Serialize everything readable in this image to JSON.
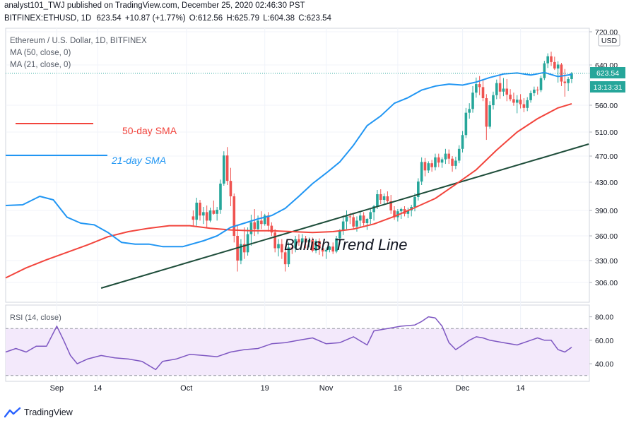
{
  "header": {
    "line1": "analyst101_TWJ published on TradingView.com, December 25, 2020 02:46:30 PST",
    "symbol": "BITFINEX:ETHUSD, 1D",
    "value": "623.54",
    "change": "+10.87 (+1.77%)",
    "o_label": "O:",
    "o": "612.56",
    "h_label": "H:",
    "h": "625.79",
    "l_label": "L:",
    "l": "604.38",
    "c_label": "C:",
    "c": "623.54"
  },
  "legend": {
    "title": "Ethereum / U.S. Dollar, 1D, BITFINEX",
    "ma50": "MA (50, close, 0)",
    "ma21": "MA (21, close, 0)"
  },
  "rsi_label": "RSI (14, close)",
  "footer": {
    "brand": "TradingView"
  },
  "colors": {
    "up": "#26a69a",
    "down": "#ef5350",
    "ma50": "#f2453d",
    "ma21": "#2196f3",
    "trend": "#1e4d3a",
    "rsi": "#7e57c2",
    "rsi_band": "#f3e9fb",
    "price_tag": "#26a69a",
    "timer_tag": "#26a69a"
  },
  "chart_data": [
    {
      "type": "candlestick",
      "title": "Ethereum / U.S. Dollar, 1D, BITFINEX",
      "ylim": [
        280,
        720
      ],
      "y_ticks": [
        "720.00",
        "640.00",
        "560.00",
        "510.00",
        "470.00",
        "430.00",
        "390.00",
        "360.00",
        "330.00",
        "306.00"
      ],
      "y_unit": "USD",
      "x_ticks": [
        "Sep",
        "14",
        "Oct",
        "19",
        "Nov",
        "16",
        "Dec",
        "14"
      ],
      "last_price": "623.54",
      "countdown": "13:13:31",
      "candles": [
        [
          383,
          390,
          371,
          379
        ],
        [
          379,
          408,
          372,
          401
        ],
        [
          401,
          405,
          378,
          384
        ],
        [
          384,
          395,
          374,
          388
        ],
        [
          388,
          397,
          370,
          378
        ],
        [
          378,
          394,
          376,
          390
        ],
        [
          390,
          404,
          385,
          386
        ],
        [
          386,
          395,
          378,
          391
        ],
        [
          391,
          434,
          386,
          428
        ],
        [
          428,
          478,
          425,
          471
        ],
        [
          471,
          485,
          426,
          432
        ],
        [
          432,
          452,
          396,
          410
        ],
        [
          410,
          414,
          352,
          360
        ],
        [
          360,
          372,
          318,
          330
        ],
        [
          330,
          356,
          326,
          350
        ],
        [
          350,
          370,
          332,
          340
        ],
        [
          340,
          370,
          336,
          362
        ],
        [
          362,
          385,
          348,
          376
        ],
        [
          376,
          392,
          360,
          368
        ],
        [
          368,
          384,
          362,
          378
        ],
        [
          378,
          389,
          368,
          374
        ],
        [
          374,
          386,
          372,
          384
        ],
        [
          384,
          388,
          365,
          372
        ],
        [
          372,
          376,
          360,
          364
        ],
        [
          364,
          368,
          340,
          345
        ],
        [
          345,
          356,
          335,
          350
        ],
        [
          350,
          356,
          332,
          340
        ],
        [
          340,
          347,
          318,
          326
        ],
        [
          326,
          352,
          323,
          346
        ],
        [
          346,
          350,
          338,
          345
        ],
        [
          345,
          360,
          340,
          356
        ],
        [
          356,
          362,
          348,
          352
        ],
        [
          352,
          362,
          350,
          357
        ],
        [
          357,
          360,
          345,
          352
        ],
        [
          352,
          358,
          346,
          355
        ],
        [
          355,
          358,
          340,
          342
        ],
        [
          342,
          356,
          339,
          354
        ],
        [
          354,
          357,
          337,
          345
        ],
        [
          345,
          350,
          335,
          341
        ],
        [
          341,
          346,
          332,
          343
        ],
        [
          343,
          348,
          340,
          347
        ],
        [
          347,
          352,
          338,
          341
        ],
        [
          341,
          360,
          339,
          357
        ],
        [
          357,
          368,
          350,
          366
        ],
        [
          366,
          384,
          361,
          377
        ],
        [
          377,
          390,
          368,
          383
        ],
        [
          383,
          387,
          374,
          382
        ],
        [
          382,
          386,
          368,
          371
        ],
        [
          371,
          383,
          365,
          378
        ],
        [
          378,
          388,
          371,
          384
        ],
        [
          384,
          388,
          372,
          375
        ],
        [
          375,
          381,
          367,
          380
        ],
        [
          380,
          392,
          374,
          388
        ],
        [
          388,
          398,
          378,
          396
        ],
        [
          396,
          419,
          392,
          413
        ],
        [
          413,
          420,
          399,
          405
        ],
        [
          405,
          414,
          398,
          410
        ],
        [
          410,
          417,
          400,
          403
        ],
        [
          403,
          412,
          386,
          390
        ],
        [
          390,
          396,
          379,
          382
        ],
        [
          382,
          392,
          377,
          389
        ],
        [
          389,
          394,
          380,
          392
        ],
        [
          392,
          396,
          383,
          386
        ],
        [
          386,
          394,
          381,
          390
        ],
        [
          390,
          398,
          383,
          395
        ],
        [
          395,
          414,
          389,
          409
        ],
        [
          409,
          436,
          404,
          431
        ],
        [
          431,
          468,
          426,
          461
        ],
        [
          461,
          467,
          439,
          448
        ],
        [
          448,
          462,
          444,
          459
        ],
        [
          459,
          464,
          446,
          453
        ],
        [
          453,
          474,
          448,
          468
        ],
        [
          468,
          474,
          453,
          460
        ],
        [
          460,
          468,
          452,
          465
        ],
        [
          465,
          482,
          458,
          474
        ],
        [
          474,
          481,
          458,
          466
        ],
        [
          466,
          470,
          446,
          455
        ],
        [
          455,
          469,
          450,
          463
        ],
        [
          463,
          488,
          459,
          482
        ],
        [
          482,
          512,
          476,
          505
        ],
        [
          505,
          555,
          500,
          546
        ],
        [
          546,
          564,
          535,
          553
        ],
        [
          553,
          598,
          546,
          585
        ],
        [
          585,
          615,
          575,
          602
        ],
        [
          602,
          618,
          580,
          596
        ],
        [
          596,
          612,
          568,
          574
        ],
        [
          574,
          582,
          497,
          520
        ],
        [
          520,
          568,
          516,
          560
        ],
        [
          560,
          587,
          552,
          580
        ],
        [
          580,
          611,
          572,
          604
        ],
        [
          604,
          621,
          573,
          587
        ],
        [
          587,
          614,
          578,
          593
        ],
        [
          593,
          612,
          568,
          581
        ],
        [
          581,
          592,
          568,
          572
        ],
        [
          572,
          585,
          559,
          565
        ],
        [
          565,
          580,
          545,
          571
        ],
        [
          571,
          582,
          554,
          562
        ],
        [
          562,
          574,
          547,
          555
        ],
        [
          555,
          576,
          549,
          570
        ],
        [
          570,
          589,
          565,
          584
        ],
        [
          584,
          597,
          578,
          591
        ],
        [
          591,
          597,
          581,
          590
        ],
        [
          590,
          619,
          586,
          614
        ],
        [
          614,
          650,
          610,
          644
        ],
        [
          644,
          668,
          634,
          661
        ],
        [
          661,
          672,
          638,
          647
        ],
        [
          647,
          660,
          630,
          633
        ],
        [
          633,
          649,
          605,
          641
        ],
        [
          641,
          645,
          598,
          607
        ],
        [
          607,
          632,
          577,
          604
        ],
        [
          604,
          616,
          588,
          612
        ],
        [
          612,
          626,
          604,
          623.54
        ]
      ],
      "ma50": [
        [
          0,
          311
        ],
        [
          6,
          322
        ],
        [
          12,
          331
        ],
        [
          18,
          340
        ],
        [
          24,
          349
        ],
        [
          30,
          359
        ],
        [
          36,
          365
        ],
        [
          42,
          369
        ],
        [
          48,
          372
        ],
        [
          54,
          372
        ],
        [
          60,
          369
        ],
        [
          66,
          367
        ],
        [
          72,
          366
        ],
        [
          78,
          366
        ],
        [
          84,
          365
        ],
        [
          90,
          364
        ],
        [
          96,
          365
        ],
        [
          102,
          368
        ],
        [
          108,
          374
        ],
        [
          114,
          383
        ],
        [
          120,
          394
        ],
        [
          126,
          407
        ],
        [
          132,
          427
        ],
        [
          138,
          449
        ],
        [
          144,
          480
        ],
        [
          150,
          510
        ],
        [
          156,
          535
        ],
        [
          162,
          555
        ],
        [
          166,
          563
        ]
      ],
      "ma21": [
        [
          0,
          397
        ],
        [
          5,
          398
        ],
        [
          10,
          410
        ],
        [
          14,
          405
        ],
        [
          18,
          382
        ],
        [
          22,
          375
        ],
        [
          26,
          373
        ],
        [
          30,
          364
        ],
        [
          34,
          352
        ],
        [
          38,
          350
        ],
        [
          42,
          350
        ],
        [
          46,
          347
        ],
        [
          52,
          347
        ],
        [
          58,
          354
        ],
        [
          62,
          360
        ],
        [
          66,
          370
        ],
        [
          70,
          375
        ],
        [
          74,
          380
        ],
        [
          78,
          384
        ],
        [
          82,
          393
        ],
        [
          86,
          410
        ],
        [
          90,
          428
        ],
        [
          94,
          444
        ],
        [
          98,
          461
        ],
        [
          102,
          488
        ],
        [
          106,
          522
        ],
        [
          110,
          540
        ],
        [
          114,
          564
        ],
        [
          118,
          575
        ],
        [
          122,
          590
        ],
        [
          126,
          598
        ],
        [
          130,
          602
        ],
        [
          134,
          600
        ],
        [
          138,
          606
        ],
        [
          142,
          615
        ],
        [
          146,
          622
        ],
        [
          150,
          624
        ],
        [
          154,
          620
        ],
        [
          158,
          625
        ],
        [
          162,
          617
        ],
        [
          166,
          621
        ]
      ],
      "trend_line": [
        [
          28,
          300
        ],
        [
          171,
          490
        ]
      ],
      "annotations": [
        "50-day SMA",
        "21-day SMA",
        "Bullish Trend Line"
      ]
    },
    {
      "type": "line",
      "title": "RSI (14, close)",
      "ylim": [
        25,
        90
      ],
      "y_ticks": [
        "80.00",
        "60.00",
        "40.00"
      ],
      "band": [
        30,
        70
      ],
      "series": [
        {
          "values": [
            [
              0,
              50
            ],
            [
              3,
              53
            ],
            [
              6,
              50
            ],
            [
              9,
              55
            ],
            [
              12,
              55
            ],
            [
              15,
              72
            ],
            [
              17,
              60
            ],
            [
              19,
              47
            ],
            [
              21,
              40
            ],
            [
              24,
              44
            ],
            [
              28,
              47
            ],
            [
              32,
              45
            ],
            [
              36,
              44
            ],
            [
              40,
              42
            ],
            [
              44,
              35
            ],
            [
              46,
              42
            ],
            [
              50,
              44
            ],
            [
              54,
              48
            ],
            [
              58,
              47
            ],
            [
              62,
              46
            ],
            [
              66,
              50
            ],
            [
              70,
              52
            ],
            [
              74,
              53
            ],
            [
              78,
              57
            ],
            [
              82,
              58
            ],
            [
              86,
              60
            ],
            [
              90,
              62
            ],
            [
              94,
              57
            ],
            [
              98,
              58
            ],
            [
              102,
              63
            ],
            [
              106,
              56
            ],
            [
              108,
              68
            ],
            [
              112,
              70
            ],
            [
              116,
              72
            ],
            [
              120,
              73
            ],
            [
              122,
              76
            ],
            [
              124,
              80
            ],
            [
              126,
              79
            ],
            [
              128,
              72
            ],
            [
              130,
              58
            ],
            [
              132,
              52
            ],
            [
              134,
              56
            ],
            [
              136,
              60
            ],
            [
              138,
              63
            ],
            [
              140,
              62
            ],
            [
              142,
              60
            ],
            [
              146,
              58
            ],
            [
              150,
              56
            ],
            [
              154,
              60
            ],
            [
              156,
              62
            ],
            [
              158,
              60
            ],
            [
              160,
              60
            ],
            [
              162,
              52
            ],
            [
              164,
              50
            ],
            [
              166,
              54
            ]
          ]
        }
      ]
    }
  ]
}
